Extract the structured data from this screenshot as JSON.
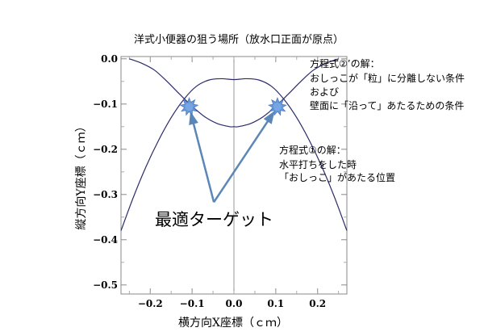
{
  "chart_data": {
    "type": "line",
    "title": "洋式小便器の狙う場所（放水口正面が原点）",
    "xlabel": "横方向X座標（ｃｍ）",
    "ylabel": "縦方向Y座標（ｃｍ）",
    "xlim": [
      -0.27,
      0.27
    ],
    "ylim": [
      -0.52,
      0.005
    ],
    "xticks": [
      -0.2,
      -0.1,
      0.0,
      0.1,
      0.2
    ],
    "xtick_labels": [
      "−0.2",
      "−0.1",
      "0.0",
      "0.1",
      "0.2"
    ],
    "yticks": [
      0.0,
      -0.1,
      -0.2,
      -0.3,
      -0.4,
      -0.5
    ],
    "ytick_labels": [
      "0.0",
      "−0.1",
      "−0.2",
      "−0.3",
      "−0.4",
      "−0.5"
    ],
    "grid": false,
    "series": [
      {
        "x": [
          -0.27,
          -0.24,
          -0.21,
          -0.18,
          -0.15,
          -0.12,
          -0.09,
          -0.06,
          -0.03,
          0.0,
          0.03,
          0.06,
          0.09,
          0.12,
          0.15,
          0.18,
          0.21,
          0.24,
          0.27
        ],
        "y": [
          -0.38,
          -0.305,
          -0.238,
          -0.18,
          -0.13,
          -0.09,
          -0.061,
          -0.047,
          -0.044,
          -0.046,
          -0.044,
          -0.047,
          -0.061,
          -0.09,
          -0.13,
          -0.18,
          -0.238,
          -0.305,
          -0.38
        ],
        "color": "#2b2b6b"
      },
      {
        "x": [
          -0.25,
          -0.22,
          -0.19,
          -0.16,
          -0.13,
          -0.1,
          -0.07,
          -0.04,
          -0.01,
          0.0,
          0.01,
          0.04,
          0.07,
          0.1,
          0.13,
          0.16,
          0.19,
          0.22,
          0.25
        ],
        "y": [
          0.0,
          -0.01,
          -0.025,
          -0.05,
          -0.078,
          -0.105,
          -0.128,
          -0.143,
          -0.15,
          -0.15,
          -0.15,
          -0.143,
          -0.128,
          -0.105,
          -0.078,
          -0.05,
          -0.025,
          -0.01,
          0.0
        ],
        "color": "#2b2b6b"
      }
    ],
    "targets": [
      {
        "x": -0.107,
        "y": -0.106
      },
      {
        "x": 0.104,
        "y": -0.106
      }
    ],
    "arrow_origin": {
      "x": -0.048,
      "y": -0.317
    },
    "annotations": {
      "eq2": [
        "方程式②’の解：",
        "おしっこが「粒」に分離しない条件",
        "および",
        "壁面に「沿って」あたるための条件"
      ],
      "eq1": [
        "方程式①の解：",
        "水平打ちをした時",
        "「おしっこ」があたる位置"
      ],
      "target": "最適ターゲット"
    },
    "colors": {
      "curve": "#2b2b6b",
      "arrow": "#5b86b8",
      "marker": "#5a8fd6",
      "axis": "#888888",
      "text": "#000000"
    }
  }
}
